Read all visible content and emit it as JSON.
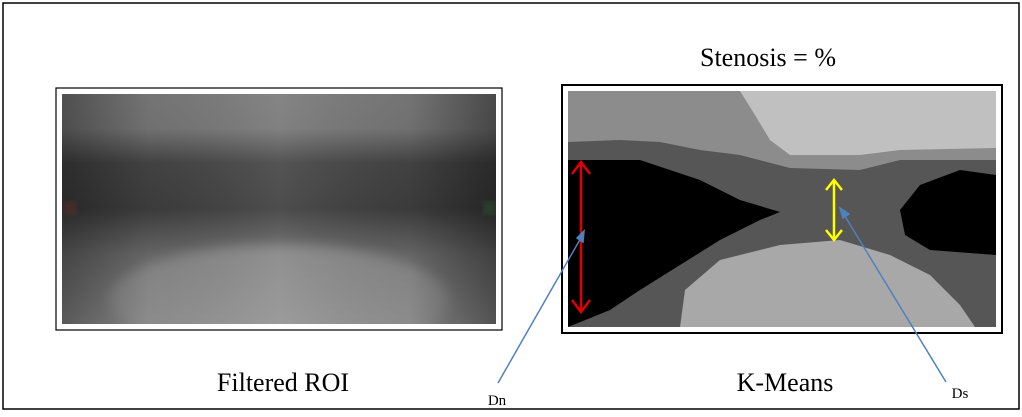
{
  "title": "Stenosis = %",
  "panels": [
    {
      "caption": "Filtered ROI"
    },
    {
      "caption": "K-Means"
    }
  ],
  "annotations": {
    "normal_diameter": "Dn",
    "stenosis_diameter": "Ds"
  }
}
